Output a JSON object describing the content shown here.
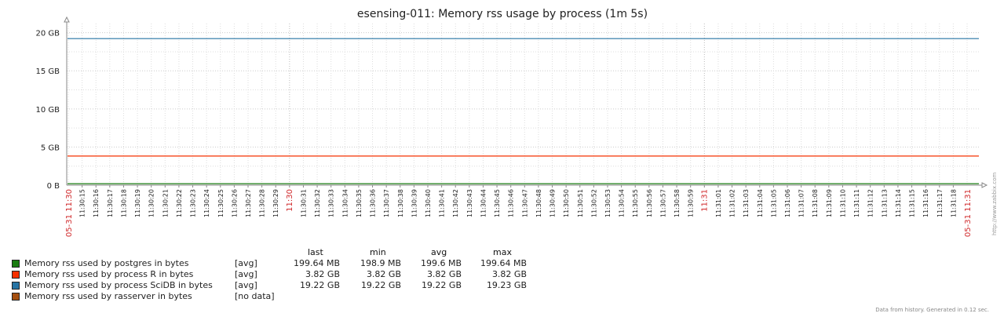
{
  "chart_data": {
    "type": "line",
    "title": "esensing-011: Memory rss usage by process (1m 5s)",
    "y_tick_labels": [
      "0 B",
      "5 GB",
      "10 GB",
      "15 GB",
      "20 GB"
    ],
    "y_ticks": [
      0,
      5,
      10,
      15,
      20
    ],
    "ylim": [
      0,
      21.2
    ],
    "y_unit": "GB",
    "grid": true,
    "x_start_label": "05-31 11:30",
    "x_end_label": "05-31 11:31",
    "x_labels": [
      "11:30:15",
      "11:30:16",
      "11:30:17",
      "11:30:18",
      "11:30:19",
      "11:30:20",
      "11:30:21",
      "11:30:22",
      "11:30:23",
      "11:30:24",
      "11:30:25",
      "11:30:26",
      "11:30:27",
      "11:30:28",
      "11:30:29",
      "11:30:30",
      "11:30:31",
      "11:30:32",
      "11:30:33",
      "11:30:34",
      "11:30:35",
      "11:30:36",
      "11:30:37",
      "11:30:38",
      "11:30:39",
      "11:30:40",
      "11:30:41",
      "11:30:42",
      "11:30:43",
      "11:30:44",
      "11:30:45",
      "11:30:46",
      "11:30:47",
      "11:30:48",
      "11:30:49",
      "11:30:50",
      "11:30:51",
      "11:30:52",
      "11:30:53",
      "11:30:54",
      "11:30:55",
      "11:30:56",
      "11:30:57",
      "11:30:58",
      "11:30:59",
      "11:31:00",
      "11:31:01",
      "11:31:02",
      "11:31:03",
      "11:31:04",
      "11:31:05",
      "11:31:06",
      "11:31:07",
      "11:31:08",
      "11:31:09",
      "11:31:10",
      "11:31:11",
      "11:31:12",
      "11:31:13",
      "11:31:14",
      "11:31:15",
      "11:31:16",
      "11:31:17",
      "11:31:18"
    ],
    "highlight_labels": [
      "11:30:30",
      "11:31:00"
    ],
    "series": [
      {
        "name": "Memory rss used by postgres in bytes",
        "color": "#1a7c11",
        "values": [
          0.1996,
          0.1996
        ]
      },
      {
        "name": "Memory rss used by process R in bytes",
        "color": "#f63100",
        "values": [
          3.82,
          3.82
        ]
      },
      {
        "name": "Memory rss used by process SciDB in bytes",
        "color": "#2774a4",
        "values": [
          19.22,
          19.22
        ]
      },
      {
        "name": "Memory rss used by rasserver in bytes",
        "color": "#a54f10",
        "values": []
      }
    ],
    "legend": {
      "headers": {
        "last": "last",
        "min": "min",
        "avg": "avg",
        "max": "max"
      },
      "rows": [
        {
          "func": "[avg]",
          "last": "199.64 MB",
          "min": "198.9 MB",
          "avg": "199.6 MB",
          "max": "199.64 MB"
        },
        {
          "func": "[avg]",
          "last": "3.82 GB",
          "min": "3.82 GB",
          "avg": "3.82 GB",
          "max": "3.82 GB"
        },
        {
          "func": "[avg]",
          "last": "19.22 GB",
          "min": "19.22 GB",
          "avg": "19.22 GB",
          "max": "19.23 GB"
        },
        {
          "func": "[no data]",
          "last": "",
          "min": "",
          "avg": "",
          "max": ""
        }
      ]
    }
  },
  "footer": "Data from history. Generated in 0.12 sec.",
  "side_url": "http://www.zabbix.com"
}
